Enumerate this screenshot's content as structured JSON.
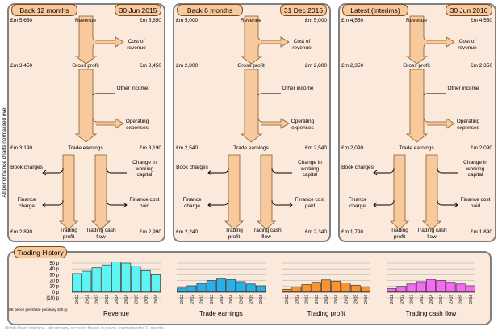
{
  "side_label": "All performance charts normalised over 12 months",
  "panels": [
    {
      "tab_left": "Back 12 months",
      "tab_right": "30 Jun 2015",
      "revenue_l": "£m 5,650",
      "revenue_r": "£m 5,650",
      "gross_l": "£m 3,450",
      "gross_r": "£m 3,450",
      "trade_l": "£m 3,190",
      "trade_r": "£m 3,190",
      "bottom_l": "£m 2,890",
      "bottom_r": "£m 2,990"
    },
    {
      "tab_left": "Back 6 months",
      "tab_right": "31 Dec 2015",
      "revenue_l": "£m 5,000",
      "revenue_r": "£m 5,000",
      "gross_l": "£m 2,800",
      "gross_r": "£m 2,800",
      "trade_l": "£m 2,540",
      "trade_r": "£m 2,540",
      "bottom_l": "£m 2,240",
      "bottom_r": "£m 2,340"
    },
    {
      "tab_left": "Latest (Interims)",
      "tab_right": "30 Jun 2016",
      "revenue_l": "£m 4,550",
      "revenue_r": "£m 4,550",
      "gross_l": "£m 2,350",
      "gross_r": "£m 2,350",
      "trade_l": "£m 2,090",
      "trade_r": "£m 2,090",
      "bottom_l": "£m 1,790",
      "bottom_r": "£m 1,890"
    }
  ],
  "flow_labels": {
    "revenue": "Revenue",
    "cost_of_revenue": "Cost of revenue",
    "gross_profit": "Gross profit",
    "other_income": "Other income",
    "operating_expenses": "Operating expenses",
    "trade_earnings": "Trade earnings",
    "book_charges": "Book charges",
    "change_in_working_capital": "Change in working capital",
    "finance_charge": "Finance charge",
    "finance_cost_paid": "Finance cost paid",
    "trading_profit": "Trading profit",
    "trading_cash_flow": "Trading cash flow"
  },
  "history": {
    "tab": "Trading History",
    "y_ticks": [
      "50 p",
      "40 p",
      "30 p",
      "20 p",
      "10 p",
      "0 p",
      "(10) p"
    ],
    "axis_note": "UK pence per share (ordinary 100 p)",
    "footer": "Mobile Brain Interface · all company accounts figures in pence · normalised to 12 months"
  },
  "chart_data": [
    {
      "type": "bar",
      "title": "Revenue",
      "color": "#5ff4f4",
      "categories": [
        "2012",
        "2012",
        "2013",
        "2013",
        "2014",
        "2014",
        "2015",
        "2015",
        "2016"
      ],
      "values": [
        32,
        36,
        42,
        47,
        52,
        50,
        45,
        37,
        30
      ],
      "ylim": [
        -10,
        50
      ]
    },
    {
      "type": "bar",
      "title": "Trade earnings",
      "color": "#2ab0e8",
      "categories": [
        "2012",
        "2012",
        "2013",
        "2013",
        "2014",
        "2014",
        "2015",
        "2015",
        "2016"
      ],
      "values": [
        7,
        11,
        15,
        20,
        24,
        22,
        18,
        14,
        11
      ],
      "ylim": [
        -10,
        50
      ]
    },
    {
      "type": "bar",
      "title": "Trading profit",
      "color": "#f99430",
      "categories": [
        "2012",
        "2012",
        "2013",
        "2013",
        "2014",
        "2014",
        "2015",
        "2015",
        "2016"
      ],
      "values": [
        5,
        9,
        13,
        17,
        21,
        19,
        16,
        12,
        9
      ],
      "ylim": [
        -10,
        50
      ]
    },
    {
      "type": "bar",
      "title": "Trading cash flow",
      "color": "#f46af4",
      "categories": [
        "2012",
        "2012",
        "2013",
        "2013",
        "2014",
        "2014",
        "2015",
        "2015",
        "2016"
      ],
      "values": [
        6,
        10,
        14,
        18,
        22,
        20,
        17,
        14,
        11
      ],
      "ylim": [
        -10,
        50
      ]
    }
  ]
}
